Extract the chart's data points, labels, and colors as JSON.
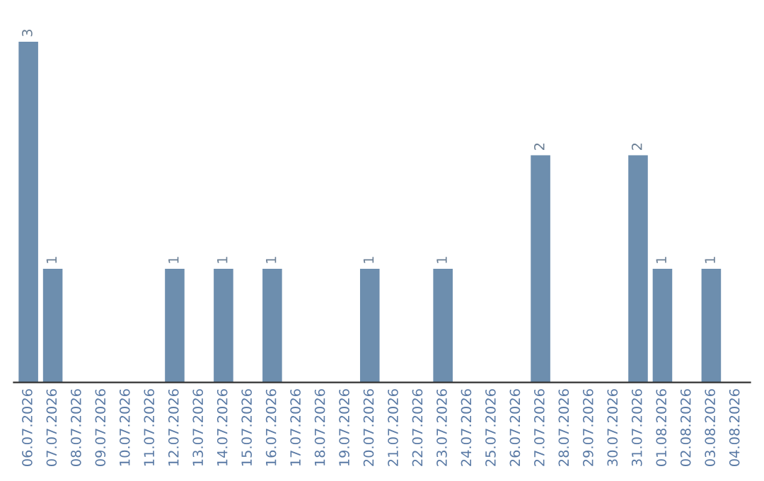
{
  "chart_data": {
    "type": "bar",
    "categories": [
      "06.07.2026",
      "07.07.2026",
      "08.07.2026",
      "09.07.2026",
      "10.07.2026",
      "11.07.2026",
      "12.07.2026",
      "13.07.2026",
      "14.07.2026",
      "15.07.2026",
      "16.07.2026",
      "17.07.2026",
      "18.07.2026",
      "19.07.2026",
      "20.07.2026",
      "21.07.2026",
      "22.07.2026",
      "23.07.2026",
      "24.07.2026",
      "25.07.2026",
      "26.07.2026",
      "27.07.2026",
      "28.07.2026",
      "29.07.2026",
      "30.07.2026",
      "31.07.2026",
      "01.08.2026",
      "02.08.2026",
      "03.08.2026",
      "04.08.2026"
    ],
    "values": [
      3,
      1,
      0,
      0,
      0,
      0,
      1,
      0,
      1,
      0,
      1,
      0,
      0,
      0,
      1,
      0,
      0,
      1,
      0,
      0,
      0,
      2,
      0,
      0,
      0,
      2,
      1,
      0,
      1,
      0
    ],
    "value_labels": [
      "3",
      "1",
      null,
      null,
      null,
      null,
      "1",
      null,
      "1",
      null,
      "1",
      null,
      null,
      null,
      "1",
      null,
      null,
      "1",
      null,
      null,
      null,
      "2",
      null,
      null,
      null,
      "2",
      "1",
      null,
      "1",
      null
    ],
    "color": "#6d8eae",
    "tick_labels": "x",
    "grid": false,
    "legend": false
  }
}
